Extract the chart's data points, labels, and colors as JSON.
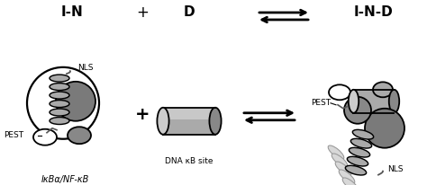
{
  "bg_color": "#ffffff",
  "label_IN": "I-N",
  "label_D": "D",
  "label_IND": "I-N-D",
  "label_NLS_left": "NLS",
  "label_NLS_right": "NLS",
  "label_PEST_left": "PEST",
  "label_PEST_right": "PEST",
  "label_IkBa": "IκBα/NF-κB",
  "label_DNA": "DNA κB site",
  "black": "#000000",
  "white": "#ffffff",
  "gray_dark": "#555555",
  "gray_mid": "#888888",
  "gray_light": "#bbbbbb",
  "gray_fill": "#aaaaaa",
  "lw": 1.3,
  "fs_title": 11,
  "fs_small": 6.5
}
